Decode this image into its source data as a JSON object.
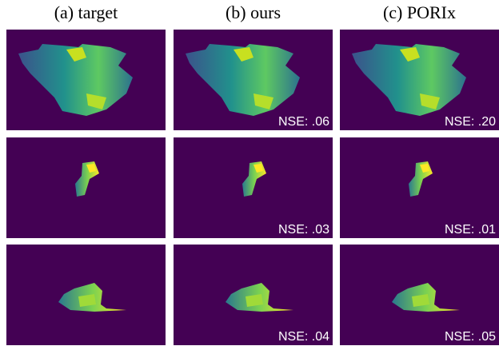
{
  "columns": [
    "(a) target",
    "(b) ours",
    "(c) PORIx"
  ],
  "nse": [
    [
      "NSE: .06",
      "NSE: .20"
    ],
    [
      "NSE: .03",
      "NSE: .01"
    ],
    [
      "NSE: .04",
      "NSE: .05"
    ]
  ]
}
